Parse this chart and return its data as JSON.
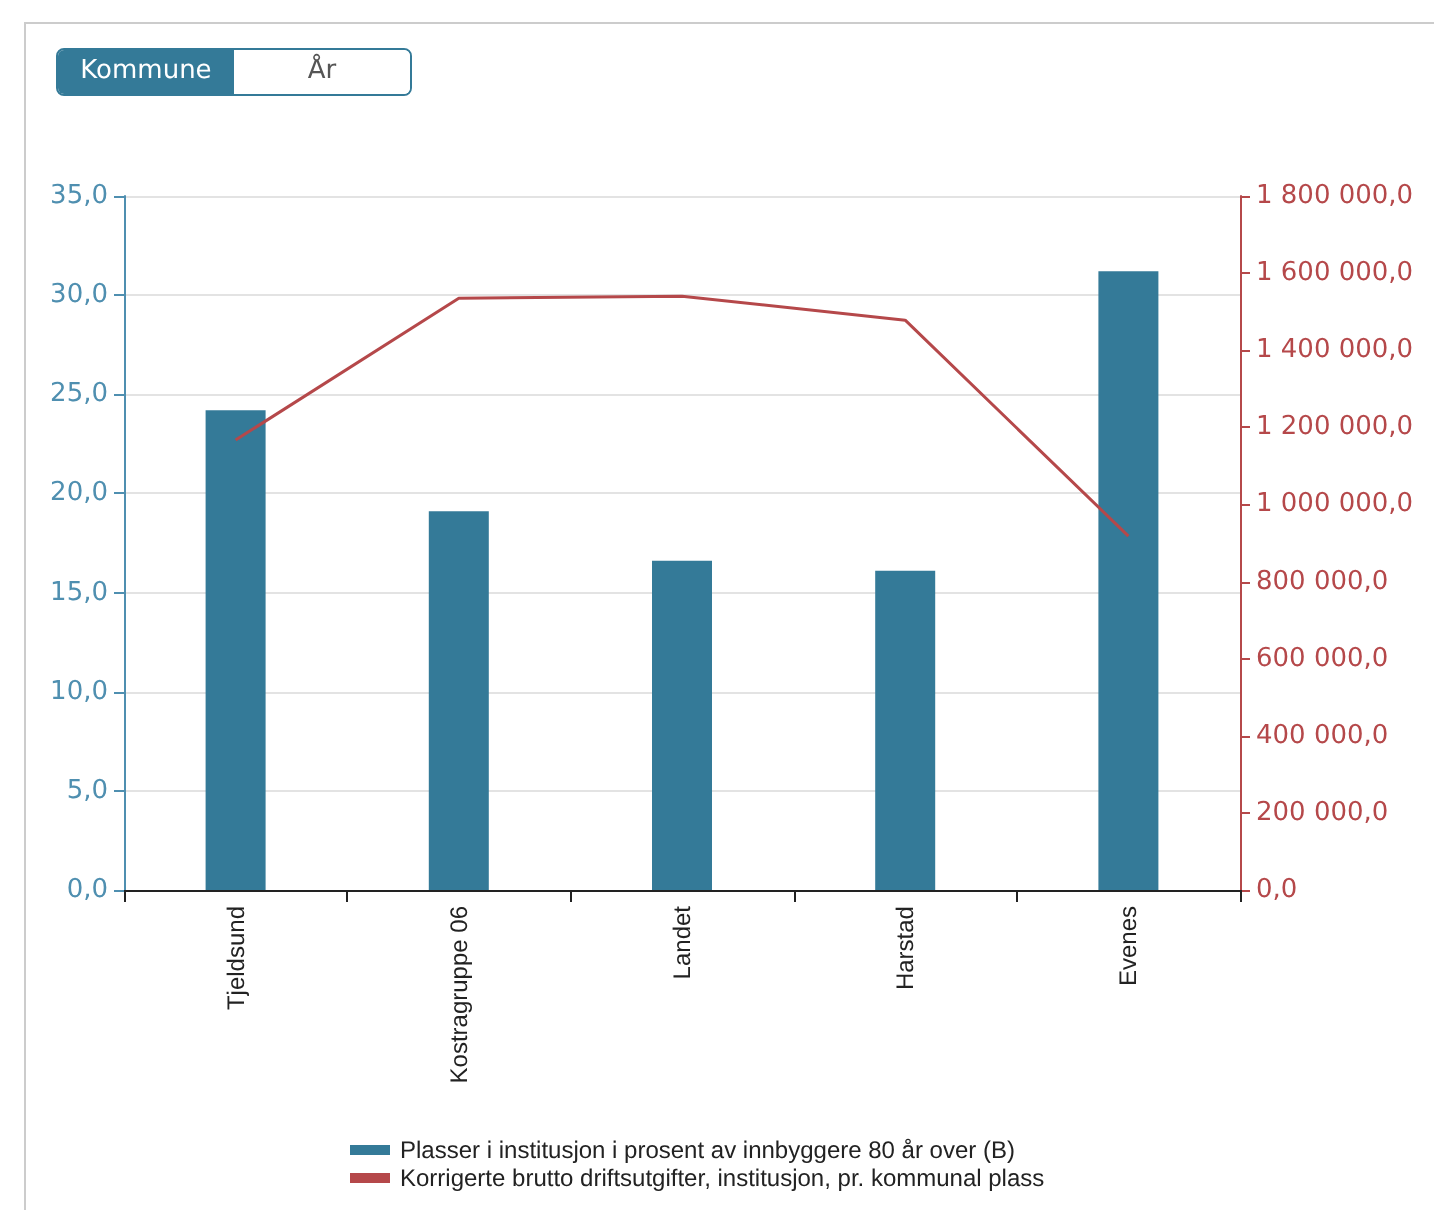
{
  "chart_data": {
    "type": "bar",
    "annotations": [
      "Kommune",
      "År"
    ],
    "categories": [
      "Tjeldsund",
      "Kostragruppe 06",
      "Landet",
      "Harstad",
      "Evenes"
    ],
    "series": [
      {
        "name": "Plasser i institusjon i prosent av innbyggere 80 år over (B)",
        "color": "#347a98",
        "values": [
          24.2,
          19.1,
          16.6,
          16.1,
          31.2
        ]
      },
      {
        "name": "Korrigerte brutto driftsutgifter, institusjon, pr. kommunal plass",
        "type": "line",
        "axis": "y2",
        "color": "#b5484a",
        "values": [
          1167000,
          1535000,
          1540000,
          1478000,
          918000
        ]
      }
    ],
    "ylim": [
      0,
      35
    ],
    "yticks": [
      {
        "value": 0,
        "label": "0,0"
      },
      {
        "value": 5,
        "label": "5,0"
      },
      {
        "value": 10,
        "label": "10,0"
      },
      {
        "value": 15,
        "label": "15,0"
      },
      {
        "value": 20,
        "label": "20,0"
      },
      {
        "value": 25,
        "label": "25,0"
      },
      {
        "value": 30,
        "label": "30,0"
      },
      {
        "value": 35,
        "label": "35,0"
      }
    ],
    "y2lim": [
      0,
      1800000
    ],
    "y2ticks": [
      {
        "value": 0,
        "label": "0,0"
      },
      {
        "value": 200000,
        "label": "200 000,0"
      },
      {
        "value": 400000,
        "label": "400 000,0"
      },
      {
        "value": 600000,
        "label": "600 000,0"
      },
      {
        "value": 800000,
        "label": "800 000,0"
      },
      {
        "value": 1000000,
        "label": "1 000 000,0"
      },
      {
        "value": 1200000,
        "label": "1 200 000,0"
      },
      {
        "value": 1400000,
        "label": "1 400 000,0"
      },
      {
        "value": 1600000,
        "label": "1 600 000,0"
      },
      {
        "value": 1800000,
        "label": "1 800 000,0"
      }
    ],
    "grid": "y",
    "legend": "bottom",
    "marker": "none"
  }
}
